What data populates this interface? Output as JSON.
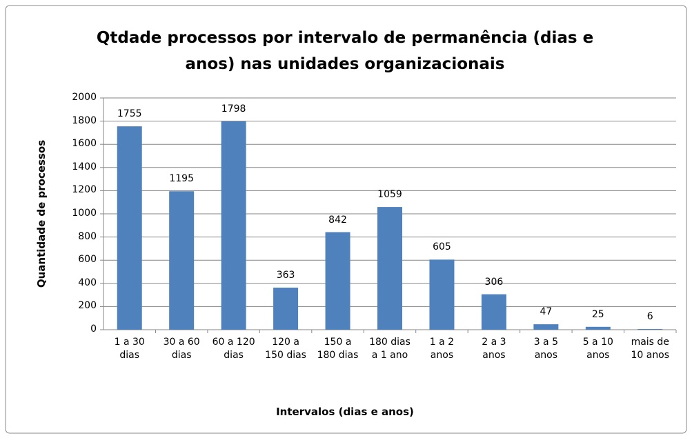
{
  "chart_data": {
    "type": "bar",
    "title": "Qtdade processos por intervalo de permanência (dias e anos) nas unidades organizacionais",
    "x_label": "Intervalos (dias e anos)",
    "y_label": "Quantidade de processos",
    "categories": [
      "1 a 30 dias",
      "30 a 60 dias",
      "60 a 120 dias",
      "120 a 150 dias",
      "150 a 180 dias",
      "180 dias a 1 ano",
      "1 a 2 anos",
      "2 a 3 anos",
      "3 a 5 anos",
      "5 a 10 anos",
      "mais de 10 anos"
    ],
    "values": [
      1755,
      1195,
      1798,
      363,
      842,
      1059,
      605,
      306,
      47,
      25,
      6
    ],
    "color": "#4f81bd",
    "ylim": [
      0,
      2000
    ],
    "yticks": [
      0,
      200,
      400,
      600,
      800,
      1000,
      1200,
      1400,
      1600,
      1800,
      2000
    ],
    "grid": true
  }
}
